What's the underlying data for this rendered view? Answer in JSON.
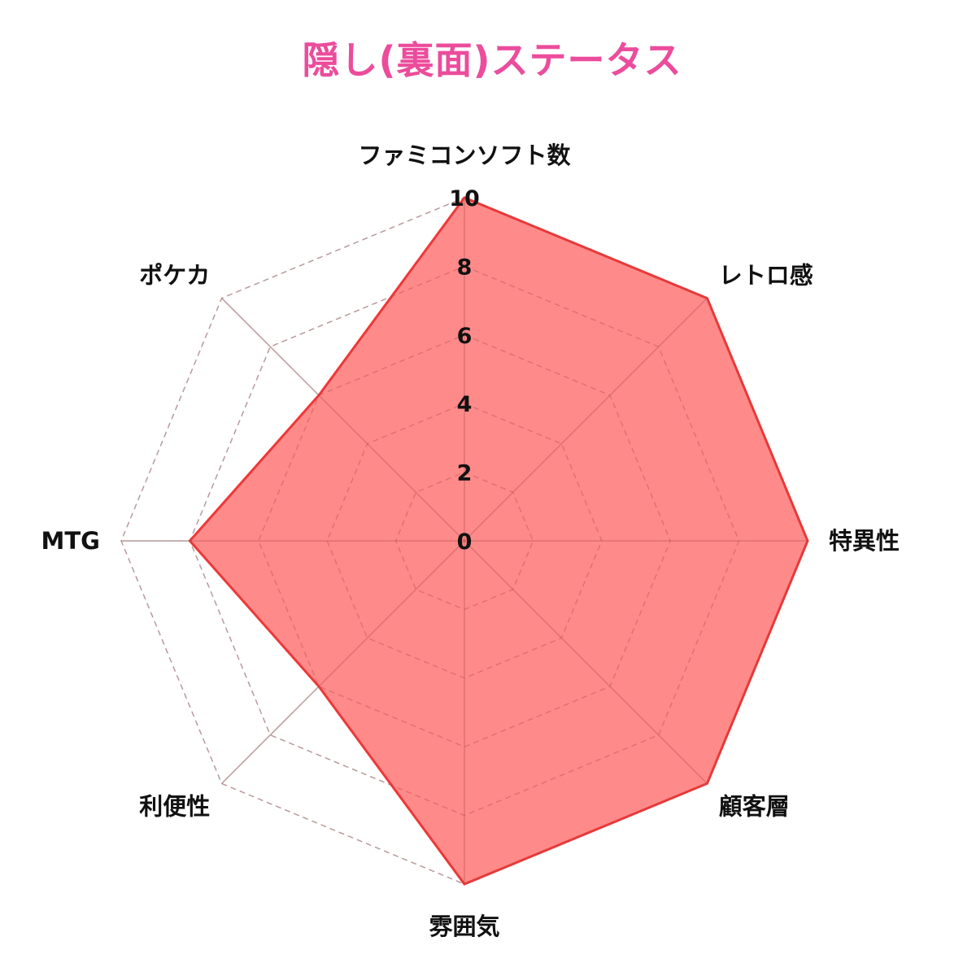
{
  "chart_data": {
    "type": "radar",
    "title": "隠し(裏面)ステータス",
    "categories": [
      "ファミコンソフト数",
      "レトロ感",
      "特異性",
      "顧客層",
      "雰囲気",
      "利便性",
      "MTG",
      "ポケカ"
    ],
    "series": [
      {
        "values": [
          10,
          10,
          10,
          10,
          10,
          6,
          8,
          6
        ]
      }
    ],
    "rlim": [
      0,
      10
    ],
    "ticks": [
      0,
      2,
      4,
      6,
      8,
      10
    ],
    "tick_labels": [
      "0",
      "2",
      "4",
      "6",
      "8",
      "10"
    ],
    "colors": {
      "title": "#ec4c9c",
      "fill": "#ff8080",
      "stroke": "#ee3838",
      "grid": "#c4c4c4"
    }
  }
}
